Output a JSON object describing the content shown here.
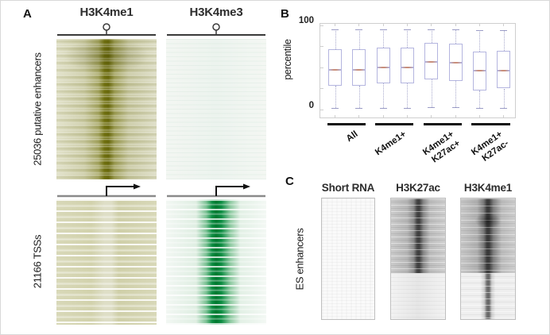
{
  "figure": {
    "panel_a": {
      "label": "A",
      "columns": [
        {
          "title": "H3K4me1"
        },
        {
          "title": "H3K4me3"
        }
      ],
      "rows": [
        {
          "label": "25036 putative enhancers"
        },
        {
          "label": "21166 TSSs"
        }
      ]
    },
    "panel_b": {
      "label": "B",
      "ylabel": "percentile",
      "ymax_label": "100",
      "ymin_label": "0"
    },
    "panel_c": {
      "label": "C",
      "columns": [
        {
          "title": "Short RNA"
        },
        {
          "title": "H3K27ac"
        },
        {
          "title": "H3K4me1"
        }
      ],
      "row_label": "ES enhancers"
    }
  },
  "colors": {
    "enhancer_band_olive": "#68680a",
    "tss_band_green": "#00782f",
    "heatmap_gray_band": "#3a3a3a",
    "box_border": "#b4b5df",
    "whisker": "#a9aacd",
    "whisker_cap": "#9b9cc6",
    "median_accent": "#c98f7a",
    "frame": "#cfcfcf"
  },
  "chart_data": {
    "type": "boxplot",
    "title": "",
    "xlabel": "",
    "ylabel": "percentile",
    "ylim": [
      0,
      100
    ],
    "yticks": [
      0,
      100
    ],
    "legend": null,
    "grid": false,
    "groups": [
      {
        "label_lines": [
          "All"
        ]
      },
      {
        "label_lines": [
          "K4me1+"
        ]
      },
      {
        "label_lines": [
          "K4me1+",
          "K27ac+"
        ]
      },
      {
        "label_lines": [
          "K4me1+",
          "K27ac-"
        ]
      }
    ],
    "boxes_per_group": 2,
    "boxes": [
      {
        "group": 0,
        "whisker_low": 2,
        "q1": 28,
        "median": 47,
        "q3": 72,
        "whisker_high": 95
      },
      {
        "group": 0,
        "whisker_low": 2,
        "q1": 28,
        "median": 47,
        "q3": 72,
        "whisker_high": 95
      },
      {
        "group": 1,
        "whisker_low": 2,
        "q1": 31,
        "median": 50,
        "q3": 74,
        "whisker_high": 95
      },
      {
        "group": 1,
        "whisker_low": 2,
        "q1": 31,
        "median": 50,
        "q3": 74,
        "whisker_high": 95
      },
      {
        "group": 2,
        "whisker_low": 3,
        "q1": 36,
        "median": 57,
        "q3": 79,
        "whisker_high": 95
      },
      {
        "group": 2,
        "whisker_low": 3,
        "q1": 34,
        "median": 56,
        "q3": 78,
        "whisker_high": 95
      },
      {
        "group": 3,
        "whisker_low": 2,
        "q1": 23,
        "median": 46,
        "q3": 69,
        "whisker_high": 94
      },
      {
        "group": 3,
        "whisker_low": 2,
        "q1": 25,
        "median": 46,
        "q3": 70,
        "whisker_high": 94
      }
    ]
  }
}
